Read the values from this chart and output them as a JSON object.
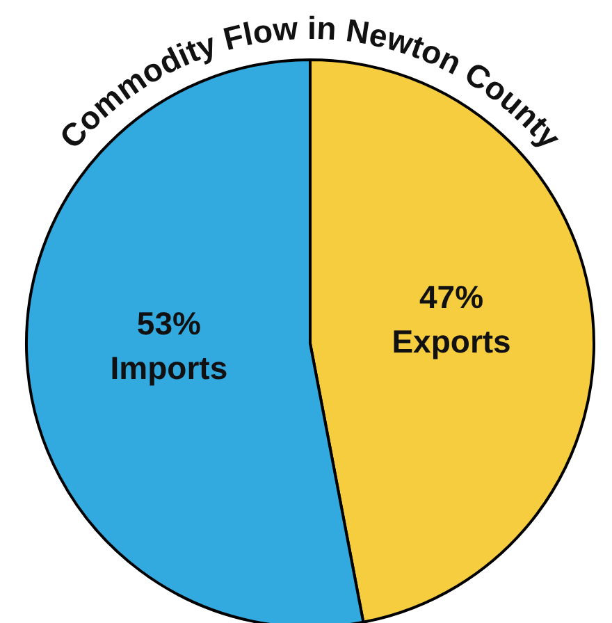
{
  "chart_data": {
    "type": "pie",
    "title": "Commodity Flow in Newton County",
    "categories": [
      "Exports",
      "Imports"
    ],
    "values": [
      47,
      53
    ],
    "colors": [
      "#f5cd3f",
      "#33aadf"
    ],
    "value_labels": [
      "47%",
      "53%"
    ]
  }
}
